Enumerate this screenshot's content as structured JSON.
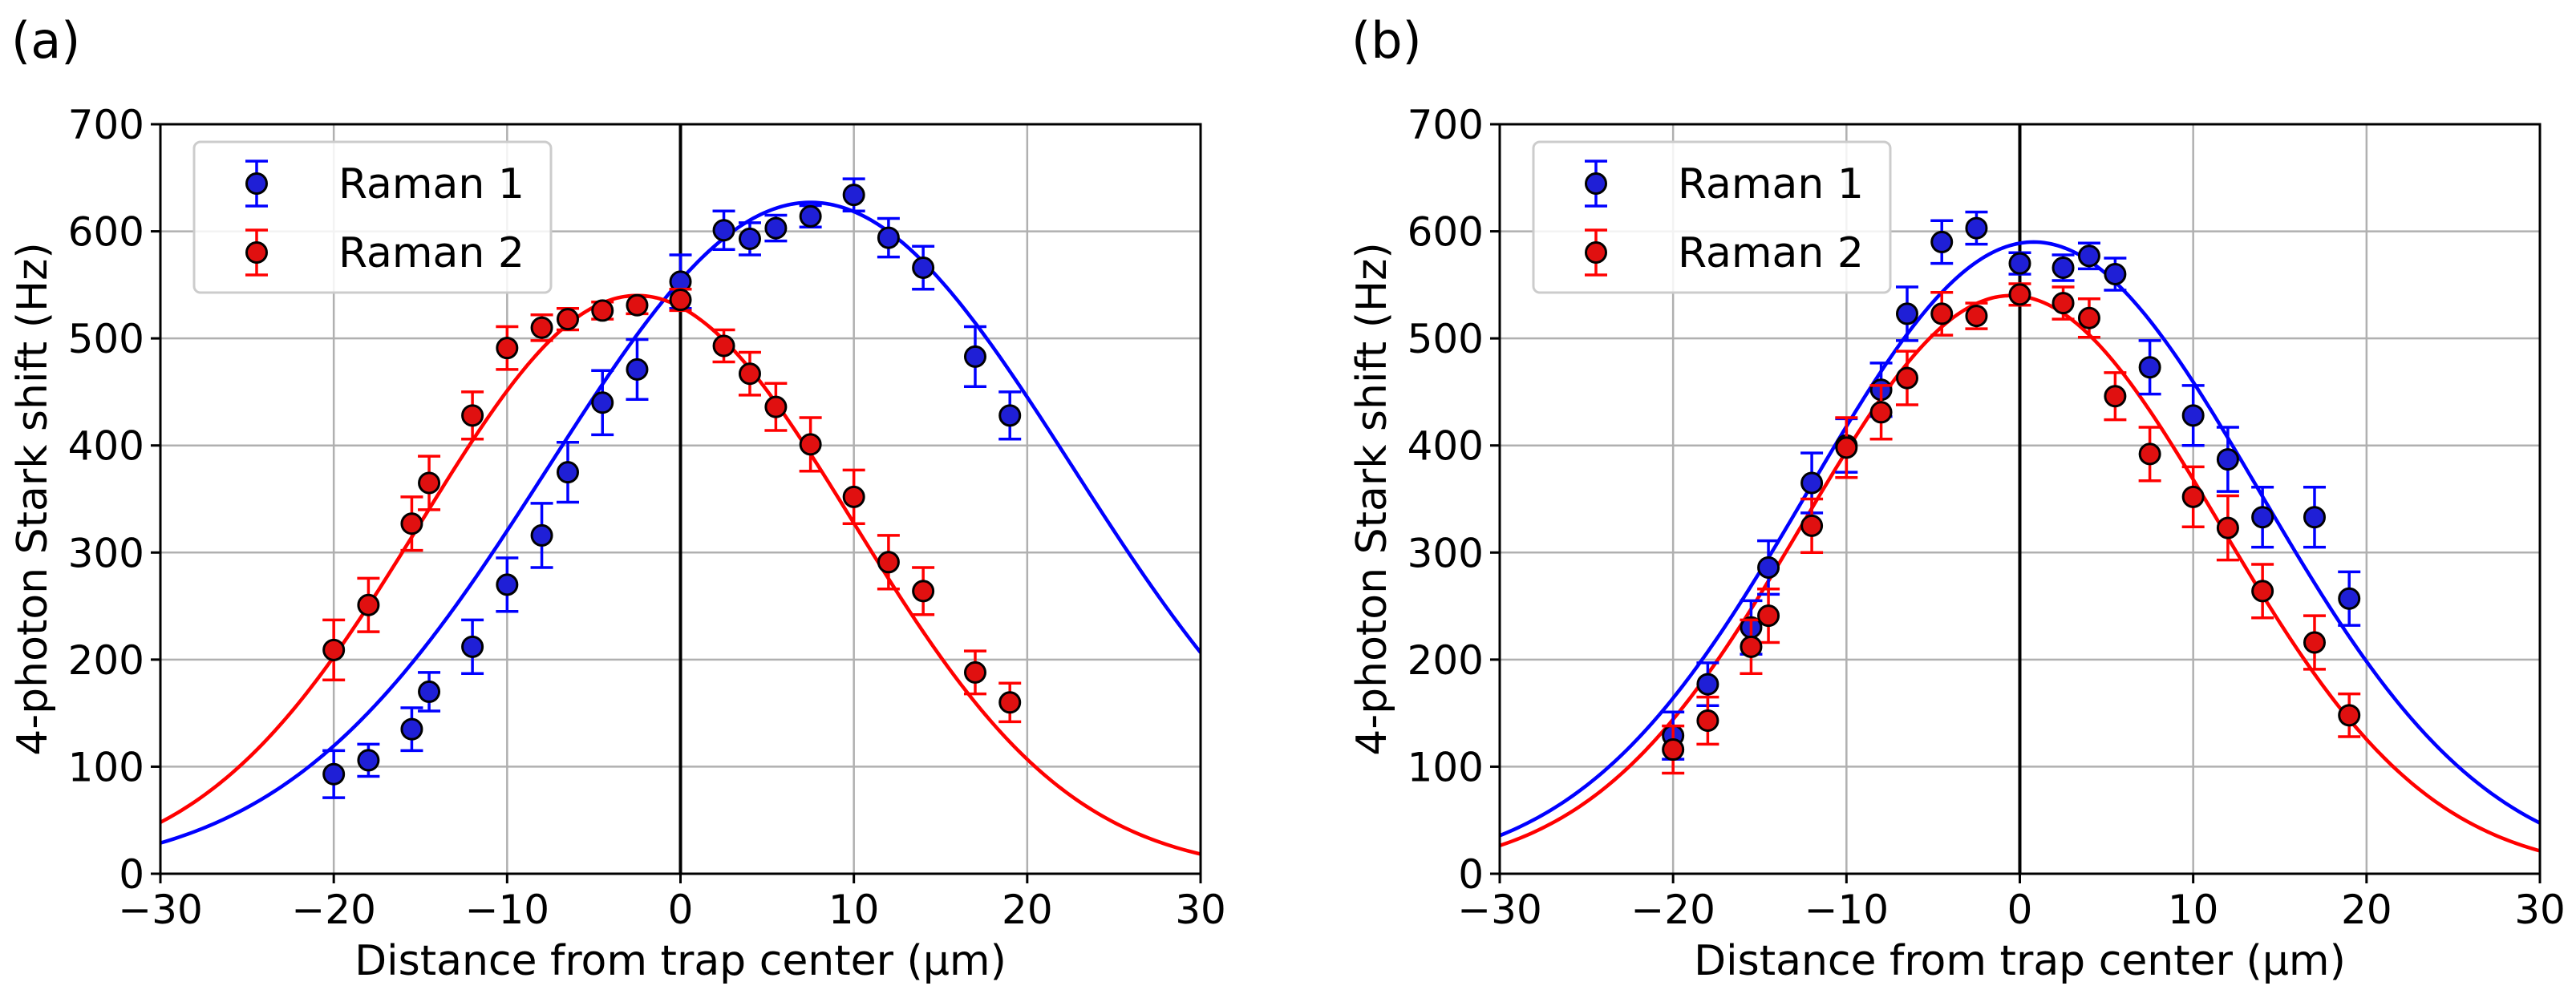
{
  "figure": {
    "panels": [
      "(a)",
      "(b)"
    ]
  },
  "chart_data": [
    {
      "type": "scatter",
      "panel_label": "(a)",
      "title": "",
      "xlabel": "Distance from trap center (μm)",
      "ylabel": "4-photon Stark shift (Hz)",
      "xlim": [
        -30,
        30
      ],
      "ylim": [
        0,
        700
      ],
      "xticks": [
        -30,
        -20,
        -10,
        0,
        10,
        20,
        30
      ],
      "xtick_labels": [
        "−30",
        "−20",
        "−10",
        "0",
        "10",
        "20",
        "30"
      ],
      "yticks": [
        0,
        100,
        200,
        300,
        400,
        500,
        600,
        700
      ],
      "ytick_labels": [
        "0",
        "100",
        "200",
        "300",
        "400",
        "500",
        "600",
        "700"
      ],
      "grid": true,
      "vertical_line_x": 0,
      "legend_position": "top-left",
      "series": [
        {
          "name": "Raman 1",
          "color": "#0000ff",
          "marker_fill": "#1f1fd6",
          "x": [
            -20,
            -18,
            -15.5,
            -14.5,
            -12,
            -10,
            -8,
            -6.5,
            -4.5,
            -2.5,
            0,
            2.5,
            4,
            5.5,
            7.5,
            10,
            12,
            14,
            17,
            19
          ],
          "y": [
            93,
            106,
            135,
            170,
            212,
            270,
            316,
            375,
            440,
            471,
            553,
            601,
            593,
            603,
            614,
            634,
            594,
            566,
            483,
            428
          ],
          "err": [
            22,
            15,
            20,
            18,
            25,
            25,
            30,
            28,
            30,
            28,
            25,
            18,
            15,
            12,
            10,
            15,
            18,
            20,
            28,
            22
          ],
          "fit": {
            "amplitude": 627,
            "center": 7.5,
            "sigma": 15.1
          }
        },
        {
          "name": "Raman 2",
          "color": "#ff0000",
          "marker_fill": "#e01010",
          "x": [
            -20,
            -18,
            -15.5,
            -14.5,
            -12,
            -10,
            -8,
            -6.5,
            -4.5,
            -2.5,
            0,
            2.5,
            4,
            5.5,
            7.5,
            10,
            12,
            14,
            17,
            19
          ],
          "y": [
            209,
            251,
            327,
            365,
            428,
            491,
            510,
            518,
            526,
            531,
            536,
            493,
            467,
            436,
            401,
            352,
            291,
            264,
            188,
            160
          ],
          "err": [
            28,
            25,
            25,
            25,
            22,
            20,
            12,
            10,
            8,
            8,
            10,
            15,
            20,
            22,
            25,
            25,
            25,
            22,
            20,
            18
          ],
          "fit": {
            "amplitude": 540,
            "center": -2.5,
            "sigma": 12.5
          }
        }
      ]
    },
    {
      "type": "scatter",
      "panel_label": "(b)",
      "title": "",
      "xlabel": "Distance from trap center (μm)",
      "ylabel": "4-photon Stark shift (Hz)",
      "xlim": [
        -30,
        30
      ],
      "ylim": [
        0,
        700
      ],
      "xticks": [
        -30,
        -20,
        -10,
        0,
        10,
        20,
        30
      ],
      "xtick_labels": [
        "−30",
        "−20",
        "−10",
        "0",
        "10",
        "20",
        "30"
      ],
      "yticks": [
        0,
        100,
        200,
        300,
        400,
        500,
        600,
        700
      ],
      "ytick_labels": [
        "0",
        "100",
        "200",
        "300",
        "400",
        "500",
        "600",
        "700"
      ],
      "grid": true,
      "vertical_line_x": 0,
      "legend_position": "top-left",
      "series": [
        {
          "name": "Raman 1",
          "color": "#0000ff",
          "marker_fill": "#1f1fd6",
          "x": [
            -20,
            -18,
            -15.5,
            -14.5,
            -12,
            -10,
            -8,
            -6.5,
            -4.5,
            -2.5,
            0,
            2.5,
            4,
            5.5,
            7.5,
            10,
            12,
            14,
            17,
            19
          ],
          "y": [
            129,
            177,
            230,
            286,
            365,
            400,
            452,
            523,
            590,
            603,
            570,
            566,
            577,
            560,
            473,
            428,
            387,
            333,
            333,
            257
          ],
          "err": [
            22,
            20,
            25,
            25,
            28,
            25,
            25,
            25,
            20,
            15,
            10,
            12,
            12,
            15,
            25,
            28,
            30,
            28,
            28,
            25
          ],
          "fit": {
            "amplitude": 590,
            "center": 0.8,
            "sigma": 13.0
          }
        },
        {
          "name": "Raman 2",
          "color": "#ff0000",
          "marker_fill": "#e01010",
          "x": [
            -20,
            -18,
            -15.5,
            -14.5,
            -12,
            -10,
            -8,
            -6.5,
            -4.5,
            -2.5,
            0,
            2.5,
            4,
            5.5,
            7.5,
            10,
            12,
            14,
            17,
            19
          ],
          "y": [
            116,
            143,
            212,
            241,
            325,
            398,
            431,
            463,
            523,
            521,
            541,
            533,
            519,
            446,
            392,
            352,
            323,
            264,
            216,
            148
          ],
          "err": [
            22,
            22,
            25,
            25,
            25,
            28,
            25,
            25,
            20,
            12,
            10,
            15,
            18,
            22,
            25,
            28,
            30,
            25,
            25,
            20
          ],
          "fit": {
            "amplitude": 540,
            "center": -0.5,
            "sigma": 12.0
          }
        }
      ]
    }
  ]
}
